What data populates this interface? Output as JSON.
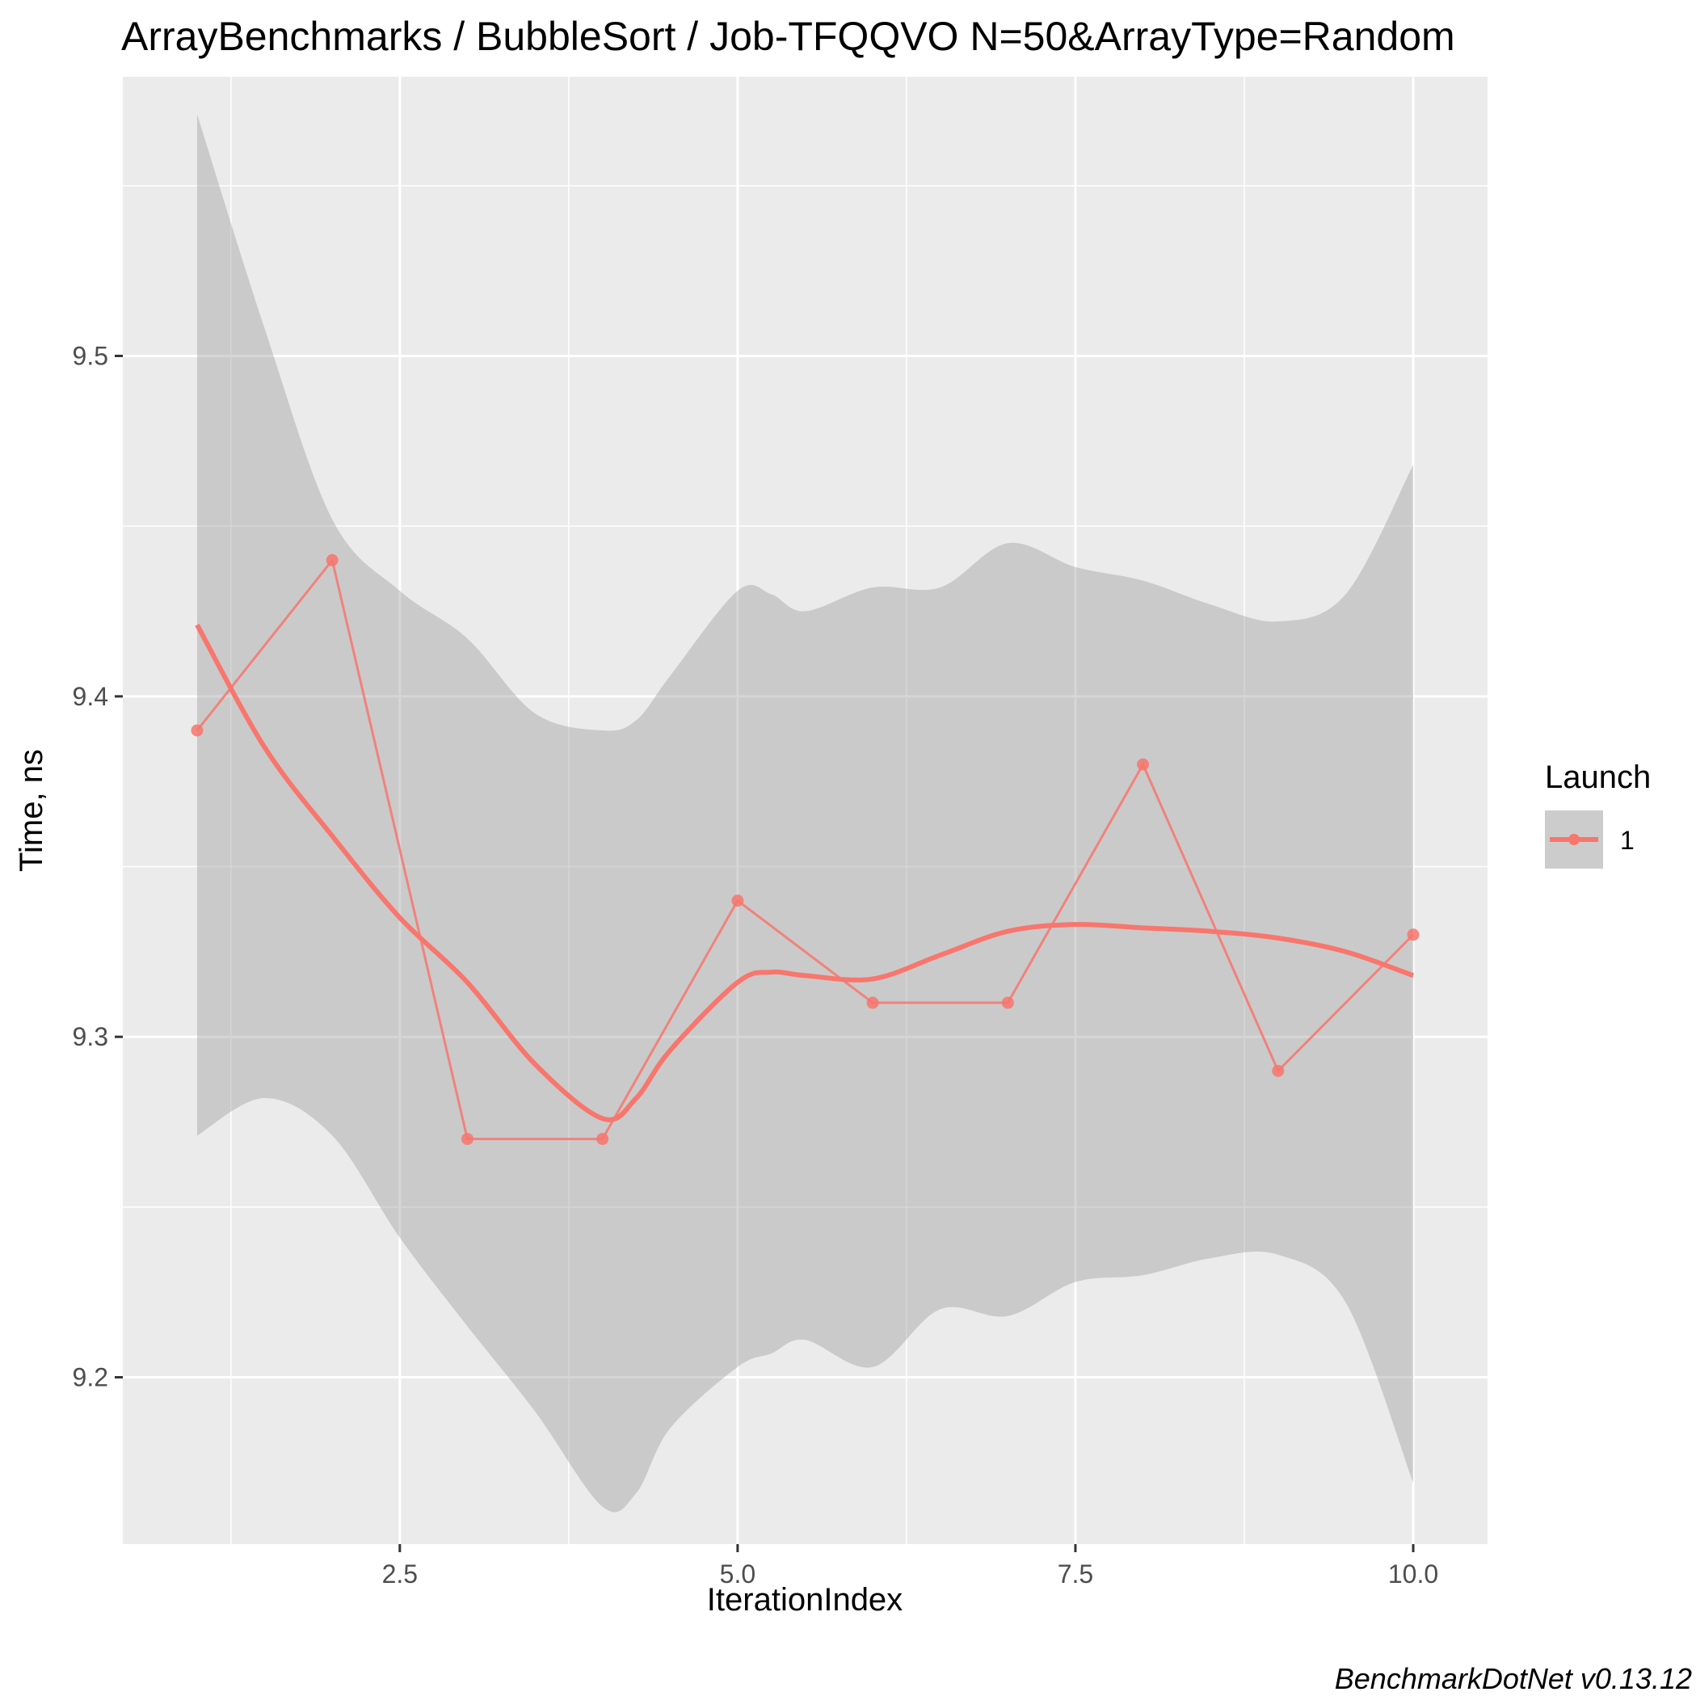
{
  "chart_data": {
    "type": "line",
    "title": "ArrayBenchmarks / BubbleSort / Job-TFQQVO N=50&ArrayType=Random",
    "xlabel": "IterationIndex",
    "ylabel": "Time, ns",
    "caption": "BenchmarkDotNet v0.13.12",
    "xlim": [
      0.45,
      10.55
    ],
    "ylim": [
      9.151,
      9.582
    ],
    "x_ticks": [
      2.5,
      5.0,
      7.5,
      10.0
    ],
    "x_tick_labels": [
      "2.5",
      "5.0",
      "7.5",
      "10.0"
    ],
    "y_ticks": [
      9.2,
      9.3,
      9.4,
      9.5
    ],
    "y_tick_labels": [
      "9.2",
      "9.3",
      "9.4",
      "9.5"
    ],
    "grid": true,
    "legend": {
      "title": "Launch",
      "position": "right",
      "entries": [
        "1"
      ]
    },
    "series": [
      {
        "name": "1",
        "color": "#F8766D",
        "x": [
          1,
          2,
          3,
          4,
          5,
          6,
          7,
          8,
          9,
          10
        ],
        "y": [
          9.39,
          9.44,
          9.27,
          9.27,
          9.34,
          9.31,
          9.31,
          9.38,
          9.29,
          9.33
        ]
      }
    ],
    "smooth": {
      "color": "#F8766D",
      "band_color": "#999999",
      "x": [
        1.0,
        1.5,
        2.0,
        2.5,
        3.0,
        3.5,
        4.0,
        4.25,
        4.5,
        5.0,
        5.25,
        5.5,
        6.0,
        6.5,
        7.0,
        7.5,
        8.0,
        8.5,
        9.0,
        9.5,
        10.0
      ],
      "y": [
        9.421,
        9.385,
        9.359,
        9.335,
        9.316,
        9.292,
        9.276,
        9.282,
        9.296,
        9.316,
        9.319,
        9.318,
        9.317,
        9.324,
        9.331,
        9.333,
        9.332,
        9.331,
        9.329,
        9.325,
        9.318
      ],
      "ymin": [
        9.271,
        9.282,
        9.271,
        9.241,
        9.215,
        9.19,
        9.162,
        9.166,
        9.185,
        9.203,
        9.207,
        9.211,
        9.203,
        9.22,
        9.218,
        9.228,
        9.23,
        9.235,
        9.236,
        9.222,
        9.169
      ],
      "ymax": [
        9.571,
        9.508,
        9.452,
        9.431,
        9.417,
        9.395,
        9.39,
        9.393,
        9.406,
        9.431,
        9.43,
        9.425,
        9.432,
        9.432,
        9.445,
        9.438,
        9.434,
        9.427,
        9.422,
        9.43,
        9.468
      ]
    }
  }
}
